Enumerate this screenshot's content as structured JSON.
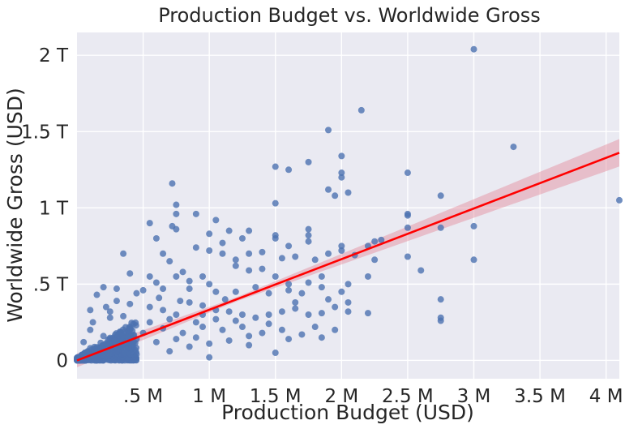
{
  "chart_data": {
    "type": "scatter",
    "title": "Production Budget vs. Worldwide Gross",
    "xlabel": "Production Budget (USD)",
    "ylabel": "Worldwide Gross (USD)",
    "xlim": [
      0,
      4.1
    ],
    "ylim": [
      -0.12,
      2.15
    ],
    "grid": true,
    "x_ticks": [
      {
        "value": 0.5,
        "label": ".5 M"
      },
      {
        "value": 1.0,
        "label": "1 M"
      },
      {
        "value": 1.5,
        "label": "1.5 M"
      },
      {
        "value": 2.0,
        "label": "2 M"
      },
      {
        "value": 2.5,
        "label": "2.5 M"
      },
      {
        "value": 3.0,
        "label": "3 M"
      },
      {
        "value": 3.5,
        "label": "3.5 M"
      },
      {
        "value": 4.0,
        "label": "4 M"
      }
    ],
    "y_ticks": [
      {
        "value": 0,
        "label": "0"
      },
      {
        "value": 0.5,
        "label": ".5 T"
      },
      {
        "value": 1.0,
        "label": "1 T"
      },
      {
        "value": 1.5,
        "label": "1.5 T"
      },
      {
        "value": 2.0,
        "label": "2 T"
      }
    ],
    "points": [
      [
        3.0,
        2.04
      ],
      [
        2.15,
        1.64
      ],
      [
        1.9,
        1.51
      ],
      [
        3.3,
        1.4
      ],
      [
        2.0,
        1.34
      ],
      [
        1.5,
        1.27
      ],
      [
        1.75,
        1.3
      ],
      [
        1.6,
        1.25
      ],
      [
        2.0,
        1.23
      ],
      [
        2.5,
        1.23
      ],
      [
        2.0,
        1.2
      ],
      [
        0.72,
        1.16
      ],
      [
        1.9,
        1.12
      ],
      [
        2.05,
        1.1
      ],
      [
        1.95,
        1.08
      ],
      [
        2.75,
        1.08
      ],
      [
        1.5,
        1.03
      ],
      [
        0.75,
        1.02
      ],
      [
        4.1,
        1.05
      ],
      [
        0.9,
        0.96
      ],
      [
        0.75,
        0.96
      ],
      [
        1.05,
        0.92
      ],
      [
        2.5,
        0.96
      ],
      [
        2.5,
        0.95
      ],
      [
        2.75,
        0.87
      ],
      [
        3.0,
        0.88
      ],
      [
        2.5,
        0.87
      ],
      [
        0.55,
        0.9
      ],
      [
        0.72,
        0.88
      ],
      [
        1.0,
        0.83
      ],
      [
        1.15,
        0.85
      ],
      [
        1.3,
        0.85
      ],
      [
        1.5,
        0.82
      ],
      [
        1.75,
        0.86
      ],
      [
        1.75,
        0.82
      ],
      [
        2.25,
        0.78
      ],
      [
        2.3,
        0.79
      ],
      [
        0.75,
        0.86
      ],
      [
        0.6,
        0.8
      ],
      [
        1.5,
        0.8
      ],
      [
        1.6,
        0.75
      ],
      [
        1.75,
        0.78
      ],
      [
        2.0,
        0.75
      ],
      [
        2.2,
        0.75
      ],
      [
        1.1,
        0.77
      ],
      [
        1.25,
        0.8
      ],
      [
        0.35,
        0.7
      ],
      [
        0.65,
        0.7
      ],
      [
        0.9,
        0.74
      ],
      [
        1.0,
        0.72
      ],
      [
        1.1,
        0.7
      ],
      [
        1.2,
        0.66
      ],
      [
        1.3,
        0.7
      ],
      [
        1.4,
        0.71
      ],
      [
        1.55,
        0.67
      ],
      [
        1.65,
        0.68
      ],
      [
        1.8,
        0.66
      ],
      [
        1.9,
        0.7
      ],
      [
        2.0,
        0.72
      ],
      [
        2.1,
        0.69
      ],
      [
        2.25,
        0.66
      ],
      [
        2.5,
        0.68
      ],
      [
        3.0,
        0.66
      ],
      [
        2.6,
        0.59
      ],
      [
        1.4,
        0.6
      ],
      [
        1.2,
        0.62
      ],
      [
        0.7,
        0.65
      ],
      [
        0.8,
        0.58
      ],
      [
        0.4,
        0.57
      ],
      [
        0.55,
        0.55
      ],
      [
        0.6,
        0.51
      ],
      [
        0.75,
        0.55
      ],
      [
        0.85,
        0.52
      ],
      [
        0.95,
        0.55
      ],
      [
        1.0,
        0.5
      ],
      [
        1.3,
        0.59
      ],
      [
        1.5,
        0.55
      ],
      [
        1.6,
        0.5
      ],
      [
        1.75,
        0.51
      ],
      [
        1.85,
        0.55
      ],
      [
        2.05,
        0.5
      ],
      [
        2.2,
        0.55
      ],
      [
        0.2,
        0.48
      ],
      [
        0.3,
        0.47
      ],
      [
        0.45,
        0.44
      ],
      [
        0.5,
        0.46
      ],
      [
        0.65,
        0.47
      ],
      [
        0.85,
        0.47
      ],
      [
        1.05,
        0.45
      ],
      [
        1.2,
        0.45
      ],
      [
        1.35,
        0.48
      ],
      [
        1.45,
        0.44
      ],
      [
        1.6,
        0.46
      ],
      [
        1.7,
        0.44
      ],
      [
        1.85,
        0.48
      ],
      [
        2.0,
        0.45
      ],
      [
        2.75,
        0.4
      ],
      [
        2.75,
        0.28
      ],
      [
        2.75,
        0.26
      ],
      [
        2.05,
        0.32
      ],
      [
        2.2,
        0.31
      ],
      [
        1.95,
        0.2
      ],
      [
        1.8,
        0.22
      ],
      [
        1.6,
        0.14
      ],
      [
        1.5,
        0.05
      ],
      [
        1.3,
        0.16
      ],
      [
        1.0,
        0.02
      ],
      [
        0.85,
        0.09
      ],
      [
        0.7,
        0.06
      ],
      [
        0.45,
        0.04
      ],
      [
        0.3,
        0.06
      ],
      [
        0.2,
        0.03
      ],
      [
        0.15,
        0.06
      ],
      [
        0.1,
        0.2
      ],
      [
        0.15,
        0.43
      ],
      [
        0.1,
        0.33
      ],
      [
        0.25,
        0.32
      ],
      [
        0.35,
        0.29
      ],
      [
        0.25,
        0.28
      ],
      [
        0.4,
        0.37
      ],
      [
        0.55,
        0.35
      ],
      [
        0.65,
        0.33
      ],
      [
        0.75,
        0.3
      ],
      [
        0.85,
        0.38
      ],
      [
        0.95,
        0.36
      ],
      [
        1.05,
        0.33
      ],
      [
        1.15,
        0.32
      ],
      [
        1.25,
        0.3
      ],
      [
        1.35,
        0.28
      ],
      [
        1.45,
        0.3
      ],
      [
        1.55,
        0.32
      ],
      [
        1.65,
        0.34
      ],
      [
        1.75,
        0.3
      ],
      [
        1.85,
        0.31
      ],
      [
        1.95,
        0.35
      ],
      [
        1.45,
        0.24
      ],
      [
        1.25,
        0.22
      ],
      [
        1.1,
        0.2
      ],
      [
        0.95,
        0.22
      ],
      [
        0.8,
        0.18
      ],
      [
        0.65,
        0.21
      ],
      [
        0.5,
        0.18
      ],
      [
        0.4,
        0.22
      ],
      [
        0.55,
        0.25
      ],
      [
        0.7,
        0.27
      ],
      [
        0.9,
        0.25
      ],
      [
        1.05,
        0.27
      ],
      [
        1.2,
        0.26
      ],
      [
        1.4,
        0.18
      ],
      [
        1.55,
        0.2
      ],
      [
        1.7,
        0.17
      ],
      [
        1.85,
        0.15
      ],
      [
        1.0,
        0.11
      ],
      [
        1.15,
        0.13
      ],
      [
        1.3,
        0.1
      ],
      [
        0.6,
        0.12
      ],
      [
        0.45,
        0.14
      ],
      [
        0.3,
        0.12
      ],
      [
        0.75,
        0.14
      ],
      [
        0.9,
        0.15
      ],
      [
        0.2,
        0.16
      ],
      [
        0.05,
        0.12
      ],
      [
        0.1,
        0.08
      ],
      [
        0.05,
        0.04
      ],
      [
        0.12,
        0.25
      ],
      [
        0.22,
        0.35
      ],
      [
        0.3,
        0.39
      ],
      [
        0.62,
        0.41
      ],
      [
        0.78,
        0.39
      ],
      [
        0.95,
        0.3
      ],
      [
        1.12,
        0.4
      ],
      [
        1.65,
        0.38
      ],
      [
        1.9,
        0.4
      ],
      [
        2.05,
        0.38
      ]
    ],
    "dense_cluster": {
      "x_range": [
        0,
        0.45
      ],
      "y_range": [
        0,
        0.25
      ],
      "count": 450
    },
    "regression": {
      "line_color": "#ff0000",
      "band_color": "#e48a9a",
      "x_range": [
        0,
        4.1
      ],
      "intercept": 0,
      "slope": 0.332,
      "ci_half_width_at_max": 0.09
    },
    "colors": {
      "points": "#4c72b0",
      "background": "#eaeaf2",
      "grid": "#ffffff"
    }
  }
}
